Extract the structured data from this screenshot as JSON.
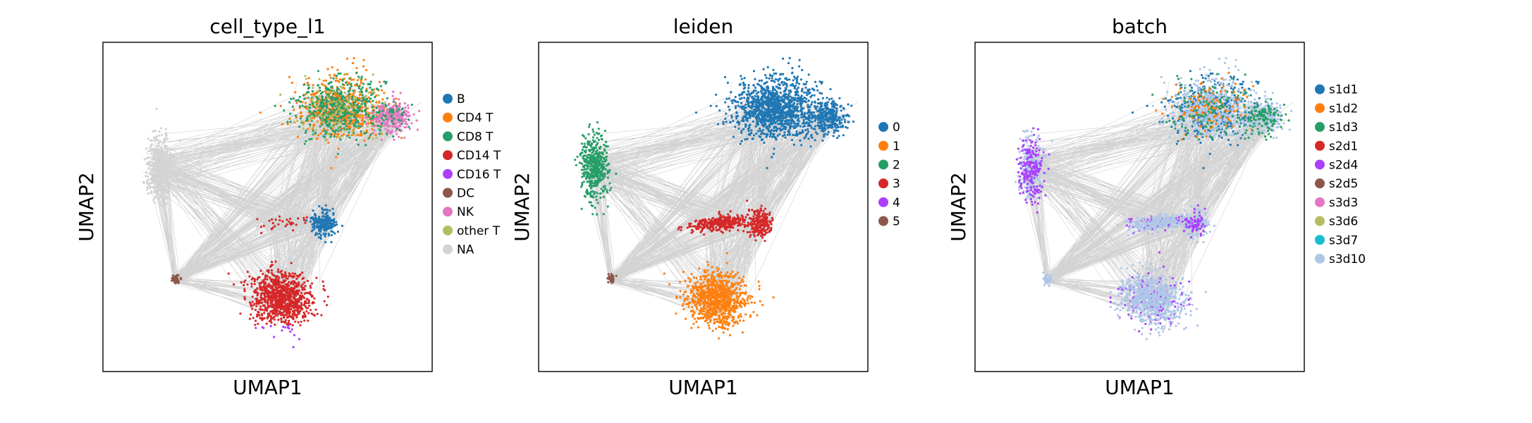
{
  "chart_data": [
    {
      "type": "scatter",
      "title": "cell_type_l1",
      "xlabel": "UMAP1",
      "ylabel": "UMAP2",
      "grid": false,
      "ticks_shown": false,
      "legend_placement": "right",
      "edges_drawn": true,
      "edge_color": "#808080",
      "categories": [
        {
          "name": "B",
          "color": "#1f77b4"
        },
        {
          "name": "CD4 T",
          "color": "#ff7f0e"
        },
        {
          "name": "CD8 T",
          "color": "#279e68"
        },
        {
          "name": "CD14 T",
          "color": "#d62728"
        },
        {
          "name": "CD16 T",
          "color": "#aa40fc"
        },
        {
          "name": "DC",
          "color": "#8c564b"
        },
        {
          "name": "NK",
          "color": "#e377c2"
        },
        {
          "name": "other T",
          "color": "#b5bd61"
        },
        {
          "name": "NA",
          "color": "#d3d3d3"
        }
      ]
    },
    {
      "type": "scatter",
      "title": "leiden",
      "xlabel": "UMAP1",
      "ylabel": "UMAP2",
      "grid": false,
      "ticks_shown": false,
      "legend_placement": "right",
      "edges_drawn": true,
      "edge_color": "#808080",
      "categories": [
        {
          "name": "0",
          "color": "#1f77b4"
        },
        {
          "name": "1",
          "color": "#ff7f0e"
        },
        {
          "name": "2",
          "color": "#279e68"
        },
        {
          "name": "3",
          "color": "#d62728"
        },
        {
          "name": "4",
          "color": "#aa40fc"
        },
        {
          "name": "5",
          "color": "#8c564b"
        }
      ]
    },
    {
      "type": "scatter",
      "title": "batch",
      "xlabel": "UMAP1",
      "ylabel": "UMAP2",
      "grid": false,
      "ticks_shown": false,
      "legend_placement": "right",
      "edges_drawn": true,
      "edge_color": "#808080",
      "categories": [
        {
          "name": "s1d1",
          "color": "#1f77b4"
        },
        {
          "name": "s1d2",
          "color": "#ff7f0e"
        },
        {
          "name": "s1d3",
          "color": "#279e68"
        },
        {
          "name": "s2d1",
          "color": "#d62728"
        },
        {
          "name": "s2d4",
          "color": "#aa40fc"
        },
        {
          "name": "s2d5",
          "color": "#8c564b"
        },
        {
          "name": "s3d3",
          "color": "#e377c2"
        },
        {
          "name": "s3d6",
          "color": "#b5bd61"
        },
        {
          "name": "s3d7",
          "color": "#17becf"
        },
        {
          "name": "s3d10",
          "color": "#aec7e8"
        }
      ]
    }
  ]
}
